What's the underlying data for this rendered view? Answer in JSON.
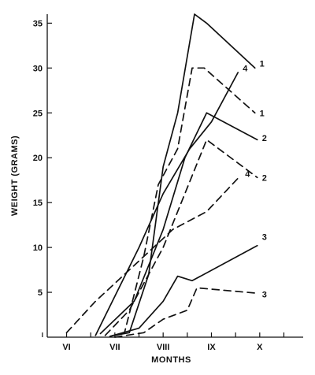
{
  "chart_data": {
    "type": "line",
    "xlabel": "MONTHS",
    "ylabel": "WEIGHT (GRAMS)",
    "x_categories": [
      "VI",
      "VII",
      "VIII",
      "IX",
      "X"
    ],
    "xlim": [
      5.6,
      10.9
    ],
    "ylim": [
      0,
      36
    ],
    "y_ticks": [
      5,
      10,
      15,
      20,
      25,
      30,
      35
    ],
    "grid": false,
    "line_color": "#111111",
    "series": [
      {
        "name": "1",
        "style": "solid",
        "label_y": 30.5,
        "points": [
          [
            7.0,
            0.2
          ],
          [
            7.3,
            0.5
          ],
          [
            7.7,
            7
          ],
          [
            8.0,
            19
          ],
          [
            8.3,
            25
          ],
          [
            8.65,
            36
          ],
          [
            8.9,
            35
          ],
          [
            9.9,
            30
          ]
        ]
      },
      {
        "name": "1",
        "style": "dashed",
        "label_y": 25.0,
        "points": [
          [
            6.9,
            0.1
          ],
          [
            7.2,
            0.5
          ],
          [
            7.6,
            9
          ],
          [
            7.9,
            17
          ],
          [
            8.3,
            21
          ],
          [
            8.6,
            30
          ],
          [
            8.85,
            30
          ],
          [
            9.9,
            25
          ]
        ]
      },
      {
        "name": "2",
        "style": "solid",
        "label_y": 22.2,
        "points": [
          [
            6.7,
            0.4
          ],
          [
            7.4,
            4
          ],
          [
            8.0,
            12
          ],
          [
            8.45,
            20
          ],
          [
            8.9,
            25
          ],
          [
            9.95,
            22
          ]
        ]
      },
      {
        "name": "2",
        "style": "dashed",
        "label_y": 17.8,
        "points": [
          [
            6.8,
            0.2
          ],
          [
            7.3,
            3
          ],
          [
            8.0,
            10
          ],
          [
            8.45,
            16
          ],
          [
            8.6,
            18
          ],
          [
            8.9,
            22
          ],
          [
            9.95,
            17.8
          ]
        ]
      },
      {
        "name": "3",
        "style": "solid",
        "label_y": 11.2,
        "points": [
          [
            6.9,
            0.1
          ],
          [
            7.5,
            1
          ],
          [
            8.0,
            4
          ],
          [
            8.3,
            6.8
          ],
          [
            8.6,
            6.3
          ],
          [
            9.95,
            10.2
          ]
        ]
      },
      {
        "name": "3",
        "style": "dashed",
        "label_y": 4.8,
        "points": [
          [
            7.0,
            0
          ],
          [
            7.6,
            0.5
          ],
          [
            8.0,
            2
          ],
          [
            8.5,
            3
          ],
          [
            8.7,
            5.5
          ],
          [
            9.95,
            4.9
          ]
        ]
      },
      {
        "name": "4",
        "style": "solid",
        "label_y": 30.0,
        "points": [
          [
            6.6,
            0.2
          ],
          [
            7.5,
            10
          ],
          [
            8.0,
            16
          ],
          [
            8.55,
            21
          ],
          [
            9.0,
            24
          ],
          [
            9.55,
            29.5
          ]
        ]
      },
      {
        "name": "4",
        "style": "dashed",
        "label_y": 18.2,
        "points": [
          [
            6.0,
            0.5
          ],
          [
            6.6,
            4
          ],
          [
            7.2,
            7
          ],
          [
            8.0,
            11
          ],
          [
            8.2,
            12
          ],
          [
            8.9,
            14
          ],
          [
            9.6,
            18
          ]
        ]
      }
    ]
  }
}
